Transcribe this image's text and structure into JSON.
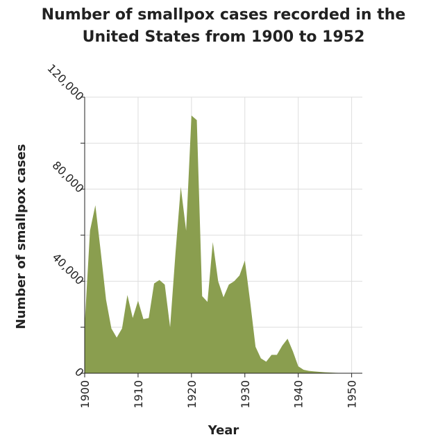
{
  "chart_data": {
    "type": "area",
    "title_line1": "Number of smallpox cases recorded in the",
    "title_line2": "United States from 1900 to 1952",
    "xlabel": "Year",
    "ylabel": "Number of smallpox cases",
    "xlim": [
      1900,
      1952
    ],
    "ylim": [
      0,
      120000
    ],
    "x_ticks": [
      1900,
      1910,
      1920,
      1930,
      1940,
      1950
    ],
    "y_ticks": [
      0,
      40000,
      80000,
      120000
    ],
    "x_tick_labels": [
      "1900",
      "1910",
      "1920",
      "1930",
      "1940",
      "1950"
    ],
    "y_tick_labels": [
      "0",
      "40,000",
      "80,000",
      "120,000"
    ],
    "grid": true,
    "fill_color": "#8a9e4f",
    "x": [
      1900,
      1901,
      1902,
      1903,
      1904,
      1905,
      1906,
      1907,
      1908,
      1909,
      1910,
      1911,
      1912,
      1913,
      1914,
      1915,
      1916,
      1917,
      1918,
      1919,
      1920,
      1921,
      1922,
      1923,
      1924,
      1925,
      1926,
      1927,
      1928,
      1929,
      1930,
      1931,
      1932,
      1933,
      1934,
      1935,
      1936,
      1937,
      1938,
      1939,
      1940,
      1941,
      1942,
      1943,
      1944,
      1945,
      1946,
      1947,
      1948,
      1949,
      1950,
      1951,
      1952
    ],
    "values": [
      21000,
      62000,
      73000,
      53000,
      32000,
      19500,
      15500,
      19500,
      34000,
      24000,
      31500,
      23500,
      24000,
      39000,
      40500,
      38500,
      20000,
      52000,
      81000,
      62000,
      112000,
      110000,
      33500,
      31000,
      57000,
      40000,
      33000,
      38500,
      40000,
      42500,
      49000,
      31000,
      11500,
      6500,
      5000,
      8000,
      8000,
      12000,
      15000,
      9500,
      3000,
      1500,
      1000,
      800,
      600,
      400,
      300,
      200,
      100,
      50,
      30,
      10,
      5
    ]
  }
}
